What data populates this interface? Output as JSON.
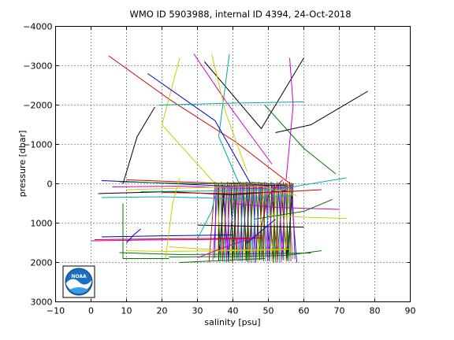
{
  "chart_data": {
    "type": "line",
    "title": "WMO ID 5903988, internal ID 4394, 24-Oct-2018",
    "xlabel": "salinity [psu]",
    "ylabel": "pressure [dbar]",
    "xlim": [
      -10,
      90
    ],
    "ylim": [
      -4000,
      3000
    ],
    "y_reversed": true,
    "grid": true,
    "x_ticks": [
      -10,
      0,
      10,
      20,
      30,
      40,
      50,
      60,
      70,
      80,
      90
    ],
    "y_ticks": [
      -4000,
      -3000,
      -2000,
      -1000,
      0,
      1000,
      2000,
      3000
    ],
    "x_tick_labels": [
      "−10",
      "0",
      "10",
      "20",
      "30",
      "40",
      "50",
      "60",
      "70",
      "80",
      "90"
    ],
    "y_tick_labels": [
      "−4000",
      "−3000",
      "−2000",
      "−1000",
      "0",
      "1000",
      "2000",
      "3000"
    ],
    "series": [
      {
        "color": "#cc0000",
        "x": [
          5,
          22,
          41,
          57
        ],
        "y": [
          -3250,
          -2150,
          -1050,
          60
        ]
      },
      {
        "color": "#000000",
        "x": [
          32,
          48,
          60
        ],
        "y": [
          -3100,
          -1400,
          -3200
        ]
      },
      {
        "color": "#00aaaa",
        "x": [
          39,
          36,
          42
        ],
        "y": [
          -3300,
          -1200,
          50
        ]
      },
      {
        "color": "#cccc00",
        "x": [
          25,
          20,
          36
        ],
        "y": [
          -3200,
          -1500,
          100
        ]
      },
      {
        "color": "#cc00cc",
        "x": [
          29,
          38,
          51
        ],
        "y": [
          -3300,
          -2100,
          -500
        ]
      },
      {
        "color": "#0000cc",
        "x": [
          16,
          35,
          45
        ],
        "y": [
          -2800,
          -1600,
          0
        ]
      },
      {
        "color": "#007700",
        "x": [
          49,
          60,
          69
        ],
        "y": [
          -2000,
          -900,
          -250
        ]
      },
      {
        "color": "#000000",
        "x": [
          52,
          62,
          78
        ],
        "y": [
          -1300,
          -1500,
          -2350
        ]
      },
      {
        "color": "#00aaaa",
        "x": [
          19,
          40,
          60
        ],
        "y": [
          -2000,
          -2050,
          -2080
        ]
      },
      {
        "color": "#000000",
        "x": [
          9,
          13,
          18
        ],
        "y": [
          0,
          -1200,
          -1950
        ]
      },
      {
        "color": "#cccc00",
        "x": [
          34,
          38,
          44
        ],
        "y": [
          -3300,
          -1800,
          -300
        ]
      },
      {
        "color": "#cc00cc",
        "x": [
          56,
          57,
          55
        ],
        "y": [
          -3200,
          -2000,
          -100
        ]
      },
      {
        "color": "#cc0000",
        "x": [
          10,
          25,
          40,
          56
        ],
        "y": [
          -100,
          -50,
          0,
          50
        ]
      },
      {
        "color": "#0000cc",
        "x": [
          3,
          20,
          38,
          54
        ],
        "y": [
          -80,
          -20,
          60,
          40
        ]
      },
      {
        "color": "#007700",
        "x": [
          8,
          30,
          46,
          55
        ],
        "y": [
          -50,
          0,
          -30,
          20
        ]
      },
      {
        "color": "#cc00cc",
        "x": [
          6,
          25,
          45,
          57
        ],
        "y": [
          80,
          60,
          120,
          100
        ]
      },
      {
        "color": "#000000",
        "x": [
          2,
          22,
          40,
          55
        ],
        "y": [
          250,
          200,
          280,
          180
        ]
      },
      {
        "color": "#cccc00",
        "x": [
          10,
          30,
          48,
          58
        ],
        "y": [
          150,
          100,
          60,
          300
        ]
      },
      {
        "color": "#00aaaa",
        "x": [
          14,
          35,
          52,
          72
        ],
        "y": [
          200,
          180,
          150,
          -150
        ]
      },
      {
        "color": "#00aaaa",
        "x": [
          3,
          20,
          40,
          57
        ],
        "y": [
          350,
          330,
          380,
          300
        ]
      },
      {
        "color": "#cc0000",
        "x": [
          20,
          38,
          55,
          65
        ],
        "y": [
          220,
          250,
          200,
          150
        ]
      },
      {
        "color": "#cc00cc",
        "x": [
          40,
          52,
          70
        ],
        "y": [
          500,
          600,
          650
        ]
      },
      {
        "color": "#cccc00",
        "x": [
          50,
          60,
          72
        ],
        "y": [
          800,
          850,
          880
        ]
      },
      {
        "color": "#007700",
        "x": [
          46,
          60,
          68
        ],
        "y": [
          900,
          700,
          400
        ]
      },
      {
        "color": "#0000cc",
        "x": [
          3,
          22,
          40
        ],
        "y": [
          1350,
          1320,
          1300
        ]
      },
      {
        "color": "#cc0000",
        "x": [
          1,
          20,
          35,
          48
        ],
        "y": [
          1420,
          1400,
          1390,
          1380
        ]
      },
      {
        "color": "#cc00cc",
        "x": [
          0,
          15,
          30,
          45
        ],
        "y": [
          1450,
          1430,
          1420,
          1400
        ]
      },
      {
        "color": "#cccc00",
        "x": [
          10,
          21,
          40,
          55
        ],
        "y": [
          1700,
          1720,
          1700,
          1680
        ]
      },
      {
        "color": "#007700",
        "x": [
          8,
          25,
          45,
          62
        ],
        "y": [
          1750,
          1800,
          1780,
          1760
        ]
      },
      {
        "color": "#cccc00",
        "x": [
          22,
          30,
          40,
          57
        ],
        "y": [
          1600,
          1650,
          1680,
          1660
        ]
      },
      {
        "color": "#007700",
        "x": [
          9,
          9,
          22
        ],
        "y": [
          500,
          1900,
          1900
        ]
      },
      {
        "color": "#0000cc",
        "x": [
          10,
          12,
          14
        ],
        "y": [
          1500,
          1300,
          1150
        ]
      },
      {
        "color": "#007700",
        "x": [
          22,
          40,
          55,
          65
        ],
        "y": [
          1860,
          1850,
          1820,
          1700
        ]
      },
      {
        "color": "#cc00cc",
        "x": [
          30,
          38,
          48
        ],
        "y": [
          1880,
          1600,
          1300
        ]
      },
      {
        "color": "#000000",
        "x": [
          30,
          45,
          60
        ],
        "y": [
          1050,
          1080,
          1100
        ]
      },
      {
        "color": "#cccc00",
        "x": [
          21,
          23,
          25
        ],
        "y": [
          1900,
          500,
          -150
        ]
      },
      {
        "color": "#00aaaa",
        "x": [
          30,
          34,
          35
        ],
        "y": [
          1400,
          700,
          300
        ]
      },
      {
        "color": "#0000cc",
        "x": [
          44,
          48,
          52
        ],
        "y": [
          1500,
          1200,
          900
        ]
      },
      {
        "color": "#007700",
        "x": [
          25,
          37,
          49
        ],
        "y": [
          2000,
          1950,
          1900
        ]
      },
      {
        "color": "#cc0000",
        "x": [
          48,
          50,
          54
        ],
        "y": [
          1100,
          300,
          -100
        ]
      }
    ],
    "profile_band": {
      "x_from": 35,
      "x_to": 57,
      "y_top": -50,
      "y_bottom": 2000,
      "colors": [
        "#cc0000",
        "#0000cc",
        "#007700",
        "#cc00cc",
        "#000000",
        "#00aaaa",
        "#cccc00"
      ]
    }
  },
  "logo": {
    "name": "NOAA",
    "text": "NOAA"
  }
}
